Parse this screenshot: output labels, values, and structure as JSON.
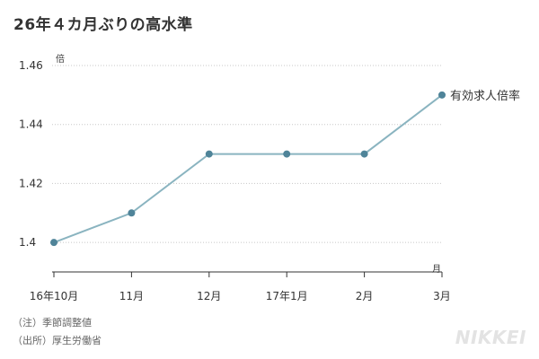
{
  "title": "26年４カ月ぶりの高水準",
  "notes": {
    "note1": "（注）季節調整値",
    "note2": "（出所）厚生労働省"
  },
  "logo": "NIKKEI",
  "chart_data": {
    "type": "line",
    "categories": [
      "16年10月",
      "11月",
      "12月",
      "17年1月",
      "2月",
      "3月"
    ],
    "series": [
      {
        "name": "有効求人倍率",
        "values": [
          1.4,
          1.41,
          1.43,
          1.43,
          1.43,
          1.45
        ]
      }
    ],
    "ylim": [
      1.39,
      1.46
    ],
    "yticks": [
      1.4,
      1.42,
      1.44,
      1.46
    ],
    "ytick_labels": [
      "1.4",
      "1.42",
      "1.44",
      "1.46"
    ],
    "y_unit": "倍",
    "x_unit": "月",
    "line_color": "#8ab4c0",
    "marker_color": "#4f8499",
    "grid": true,
    "grid_color": "#c8c8c8"
  }
}
